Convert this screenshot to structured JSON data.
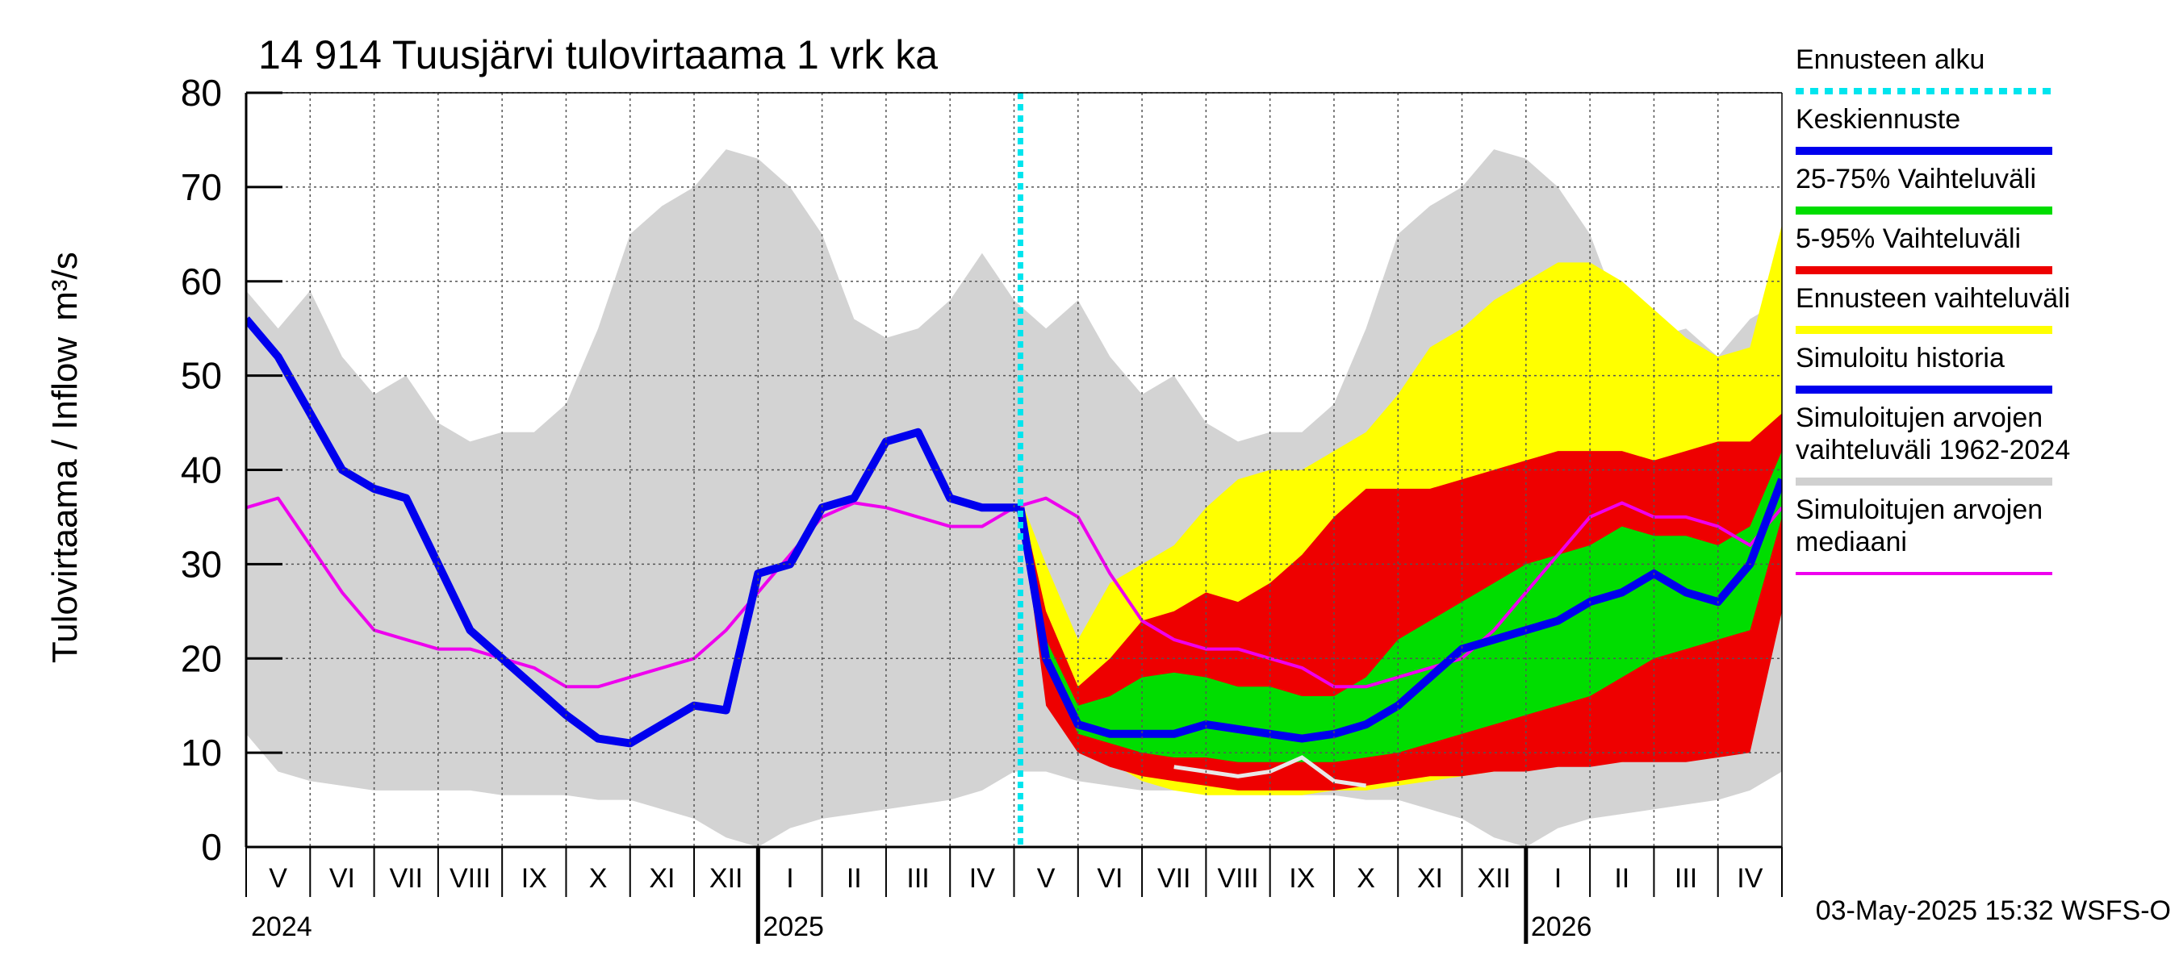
{
  "chart_data": {
    "type": "area",
    "title": "14 914 Tuusjärvi tulovirtaama 1 vrk ka",
    "ylabel": "Tulovirtaama / Inflow",
    "yunit": "m³/s",
    "ylim": [
      0,
      80
    ],
    "yticks": [
      0,
      10,
      20,
      30,
      40,
      50,
      60,
      70,
      80
    ],
    "xlim_months": [
      0,
      24
    ],
    "forecast_start_month": 12.1,
    "month_labels": [
      "V",
      "VI",
      "VII",
      "VIII",
      "IX",
      "X",
      "XI",
      "XII",
      "I",
      "II",
      "III",
      "IV",
      "V",
      "VI",
      "VII",
      "VIII",
      "IX",
      "X",
      "XI",
      "XII",
      "I",
      "II",
      "III",
      "IV"
    ],
    "year_labels": [
      {
        "label": "2024",
        "month": 0
      },
      {
        "label": "2025",
        "month": 8
      },
      {
        "label": "2026",
        "month": 20
      }
    ],
    "timestamp": "03-May-2025 15:32 WSFS-O",
    "legend": [
      {
        "label": "Ennusteen alku",
        "color": "#00e5ee",
        "style": "dotted"
      },
      {
        "label": "Keskiennuste",
        "color": "#0000ee",
        "style": "solid"
      },
      {
        "label": "25-75% Vaihteluväli",
        "color": "#00dd00",
        "style": "solid"
      },
      {
        "label": "5-95% Vaihteluväli",
        "color": "#ee0000",
        "style": "solid"
      },
      {
        "label": "Ennusteen vaihteluväli",
        "color": "#ffff00",
        "style": "solid"
      },
      {
        "label": "Simuloitu historia",
        "color": "#0000ee",
        "style": "solid"
      },
      {
        "label": "Simuloitujen arvojen vaihteluväli 1962-2024",
        "lines": [
          "Simuloitujen arvojen",
          "vaihteluväli 1962-2024"
        ],
        "color": "#d0d0d0",
        "style": "solid"
      },
      {
        "label": "Simuloitujen arvojen mediaani",
        "lines": [
          "Simuloitujen arvojen",
          "mediaani"
        ],
        "color": "#ee00ee",
        "style": "solid"
      }
    ],
    "series": {
      "history_range": {
        "name": "Simuloitujen arvojen vaihteluväli 1962-2024",
        "color": "#d3d3d3",
        "x": [
          0,
          0.5,
          1,
          1.5,
          2,
          2.5,
          3,
          3.5,
          4,
          4.5,
          5,
          5.5,
          6,
          6.5,
          7,
          7.5,
          8,
          8.5,
          9,
          9.5,
          10,
          10.5,
          11,
          11.5,
          12,
          12.5,
          13,
          13.5,
          14,
          14.5,
          15,
          15.5,
          16,
          16.5,
          17,
          17.5,
          18,
          18.5,
          19,
          19.5,
          20,
          20.5,
          21,
          21.5,
          22,
          22.5,
          23,
          23.5,
          24
        ],
        "lower": [
          12,
          8,
          7,
          6.5,
          6,
          6,
          6,
          6,
          5.5,
          5.5,
          5.5,
          5,
          5,
          4,
          3,
          1,
          0,
          2,
          3,
          3.5,
          4,
          4.5,
          5,
          6,
          8,
          8,
          7,
          6.5,
          6,
          6,
          6,
          6,
          5.5,
          5.5,
          5.5,
          5,
          5,
          4,
          3,
          1,
          0,
          2,
          3,
          3.5,
          4,
          4.5,
          5,
          6,
          8
        ],
        "upper": [
          59,
          55,
          59,
          52,
          48,
          50,
          45,
          43,
          44,
          44,
          47,
          55,
          65,
          68,
          70,
          74,
          73,
          70,
          65,
          56,
          54,
          55,
          58,
          63,
          58,
          55,
          58,
          52,
          48,
          50,
          45,
          43,
          44,
          44,
          47,
          55,
          65,
          68,
          70,
          74,
          73,
          70,
          65,
          56,
          54,
          55,
          52,
          56,
          58
        ]
      },
      "history_median": {
        "name": "Simuloitujen arvojen mediaani",
        "color": "#ee00ee",
        "x": [
          0,
          0.5,
          1,
          1.5,
          2,
          2.5,
          3,
          3.5,
          4,
          4.5,
          5,
          5.5,
          6,
          6.5,
          7,
          7.5,
          8,
          8.5,
          9,
          9.5,
          10,
          10.5,
          11,
          11.5,
          12,
          12.5,
          13,
          13.5,
          14,
          14.5,
          15,
          15.5,
          16,
          16.5,
          17,
          17.5,
          18,
          18.5,
          19,
          19.5,
          20,
          20.5,
          21,
          21.5,
          22,
          22.5,
          23,
          23.5,
          24
        ],
        "values": [
          36,
          37,
          32,
          27,
          23,
          22,
          21,
          21,
          20,
          19,
          17,
          17,
          18,
          19,
          20,
          23,
          27,
          31,
          35,
          36.5,
          36,
          35,
          34,
          34,
          36,
          37,
          35,
          29,
          24,
          22,
          21,
          21,
          20,
          19,
          17,
          17,
          18,
          19,
          20,
          23,
          27,
          31,
          35,
          36.5,
          35,
          35,
          34,
          32,
          36
        ]
      },
      "simulated_history": {
        "name": "Simuloitu historia",
        "color": "#0000ee",
        "x": [
          0,
          0.5,
          1,
          1.5,
          2,
          2.5,
          3,
          3.5,
          4,
          4.5,
          5,
          5.5,
          6,
          6.5,
          7,
          7.5,
          8,
          8.5,
          9,
          9.5,
          10,
          10.5,
          11,
          11.5,
          12.1
        ],
        "values": [
          56,
          52,
          46,
          40,
          38,
          37,
          30,
          23,
          20,
          17,
          14,
          11.5,
          11,
          13,
          15,
          14.5,
          29,
          30,
          36,
          37,
          43,
          44,
          37,
          36,
          36
        ]
      },
      "forecast_range": {
        "name": "Ennusteen vaihteluväli",
        "color": "#ffff00",
        "x": [
          12.1,
          12.5,
          13,
          13.5,
          14,
          14.5,
          15,
          15.5,
          16,
          16.5,
          17,
          17.5,
          18,
          18.5,
          19,
          19.5,
          20,
          20.5,
          21,
          21.5,
          22,
          22.5,
          23,
          23.5,
          24
        ],
        "lower": [
          36,
          20,
          11,
          9,
          7,
          6,
          5.5,
          5.5,
          5.5,
          5.5,
          6,
          6,
          6.5,
          7,
          7.5,
          8,
          8.5,
          8.5,
          9,
          9,
          9.5,
          9.5,
          10,
          11,
          25
        ],
        "upper": [
          37,
          30,
          22,
          28,
          30,
          32,
          36,
          39,
          40,
          40,
          42,
          44,
          48,
          53,
          55,
          58,
          60,
          62,
          62,
          60,
          57,
          54,
          52,
          53,
          66
        ]
      },
      "forecast_5_95": {
        "name": "5-95% Vaihteluväli",
        "color": "#ee0000",
        "x": [
          12.1,
          12.5,
          13,
          13.5,
          14,
          14.5,
          15,
          15.5,
          16,
          16.5,
          17,
          17.5,
          18,
          18.5,
          19,
          19.5,
          20,
          20.5,
          21,
          21.5,
          22,
          22.5,
          23,
          23.5,
          24
        ],
        "lower": [
          36,
          15,
          10,
          8.5,
          7.5,
          7,
          6.5,
          6,
          6,
          6,
          6,
          6.5,
          7,
          7.5,
          7.5,
          8,
          8,
          8.5,
          8.5,
          9,
          9,
          9,
          9.5,
          10,
          25
        ],
        "upper": [
          37,
          25,
          17,
          20,
          24,
          25,
          27,
          26,
          28,
          31,
          35,
          38,
          38,
          38,
          39,
          40,
          41,
          42,
          42,
          42,
          41,
          42,
          43,
          43,
          46
        ]
      },
      "forecast_25_75": {
        "name": "25-75% Vaihteluväli",
        "color": "#00dd00",
        "x": [
          12.1,
          12.5,
          13,
          13.5,
          14,
          14.5,
          15,
          15.5,
          16,
          16.5,
          17,
          17.5,
          18,
          18.5,
          19,
          19.5,
          20,
          20.5,
          21,
          21.5,
          22,
          22.5,
          23,
          23.5,
          24
        ],
        "lower": [
          36,
          20,
          12,
          11,
          10,
          9.5,
          9.5,
          9,
          9,
          9,
          9,
          9.5,
          10,
          11,
          12,
          13,
          14,
          15,
          16,
          18,
          20,
          21,
          22,
          23,
          35
        ],
        "upper": [
          36.5,
          22,
          15,
          16,
          18,
          18.5,
          18,
          17,
          17,
          16,
          16,
          18,
          22,
          24,
          26,
          28,
          30,
          31,
          32,
          34,
          33,
          33,
          32,
          34,
          42
        ]
      },
      "forecast_mean": {
        "name": "Keskiennuste",
        "color": "#0000ee",
        "x": [
          12.1,
          12.5,
          13,
          13.5,
          14,
          14.5,
          15,
          15.5,
          16,
          16.5,
          17,
          17.5,
          18,
          18.5,
          19,
          19.5,
          20,
          20.5,
          21,
          21.5,
          22,
          22.5,
          23,
          23.5,
          24
        ],
        "values": [
          36,
          20,
          13,
          12,
          12,
          12,
          13,
          12.5,
          12,
          11.5,
          12,
          13,
          15,
          18,
          21,
          22,
          23,
          24,
          26,
          27,
          29,
          27,
          26,
          30,
          39
        ]
      },
      "history_range_white_line": {
        "name": "Simuloitujen arvojen vaihteluväli 1962-2024 (alaraja)",
        "color": "#e8e8e8",
        "x": [
          14.5,
          15,
          15.5,
          16,
          16.5,
          17,
          17.5
        ],
        "values": [
          8.5,
          8,
          7.5,
          8,
          9.5,
          7,
          6.5
        ]
      }
    }
  }
}
